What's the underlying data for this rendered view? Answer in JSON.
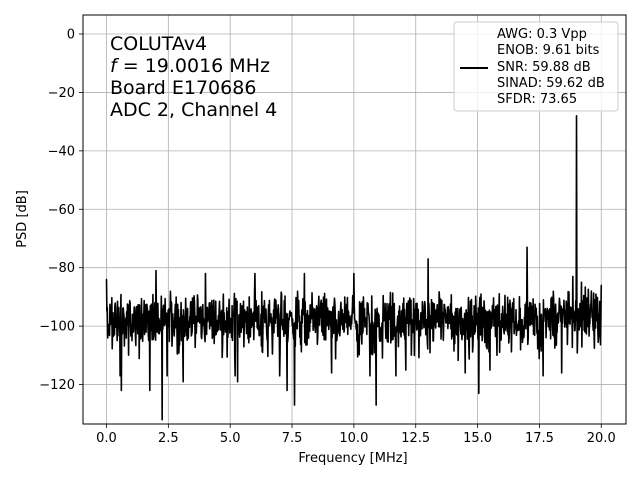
{
  "chart_data": {
    "type": "line",
    "xlabel": "Frequency [MHz]",
    "ylabel": "PSD [dB]",
    "xlim": [
      -0.95,
      21.0
    ],
    "ylim": [
      -133.5,
      6.5
    ],
    "xticks": [
      0.0,
      2.5,
      5.0,
      7.5,
      10.0,
      12.5,
      15.0,
      17.5,
      20.0
    ],
    "xtick_labels": [
      "0.0",
      "2.5",
      "5.0",
      "7.5",
      "10.0",
      "12.5",
      "15.0",
      "17.5",
      "20.0"
    ],
    "yticks": [
      0,
      -20,
      -40,
      -60,
      -80,
      -100,
      -120
    ],
    "ytick_labels": [
      "0",
      "−20",
      "−40",
      "−60",
      "−80",
      "−100",
      "−120"
    ],
    "grid": true,
    "annotation": {
      "line1": "COLUTAv4",
      "line2_italic": "f",
      "line2_rest": " = 19.0016 MHz",
      "line3": "Board E170686",
      "line4": "ADC 2, Channel 4"
    },
    "legend": {
      "placement": "top-right",
      "lines": [
        "AWG: 0.3 Vpp",
        "ENOB: 9.61 bits",
        "SNR: 59.88 dB",
        "SINAD: 59.62 dB",
        "SFDR: 73.65"
      ]
    },
    "series": [
      {
        "color": "#000000",
        "noise_floor": {
          "x_range": [
            0.0,
            20.0
          ],
          "mean": -98,
          "spread": [
            -110,
            -88
          ]
        },
        "peaks": [
          {
            "x": 0.0,
            "y": -84
          },
          {
            "x": 0.05,
            "y": -104
          },
          {
            "x": 0.55,
            "y": -117
          },
          {
            "x": 0.6,
            "y": -122
          },
          {
            "x": 1.75,
            "y": -122
          },
          {
            "x": 2.0,
            "y": -81
          },
          {
            "x": 2.25,
            "y": -132
          },
          {
            "x": 2.45,
            "y": -117
          },
          {
            "x": 3.1,
            "y": -119
          },
          {
            "x": 4.0,
            "y": -82
          },
          {
            "x": 5.2,
            "y": -117
          },
          {
            "x": 5.3,
            "y": -119
          },
          {
            "x": 6.0,
            "y": -82
          },
          {
            "x": 7.0,
            "y": -117
          },
          {
            "x": 7.3,
            "y": -122
          },
          {
            "x": 7.6,
            "y": -127
          },
          {
            "x": 8.0,
            "y": -82
          },
          {
            "x": 9.1,
            "y": -116
          },
          {
            "x": 10.0,
            "y": -82
          },
          {
            "x": 10.65,
            "y": -117
          },
          {
            "x": 10.9,
            "y": -127
          },
          {
            "x": 11.7,
            "y": -117
          },
          {
            "x": 12.1,
            "y": -115
          },
          {
            "x": 13.0,
            "y": -77
          },
          {
            "x": 14.5,
            "y": -116
          },
          {
            "x": 15.05,
            "y": -123
          },
          {
            "x": 15.5,
            "y": -115
          },
          {
            "x": 17.0,
            "y": -73
          },
          {
            "x": 17.65,
            "y": -117
          },
          {
            "x": 18.4,
            "y": -116
          },
          {
            "x": 18.85,
            "y": -83
          },
          {
            "x": 19.0,
            "y": -28
          },
          {
            "x": 19.2,
            "y": -85
          },
          {
            "x": 19.6,
            "y": -88
          },
          {
            "x": 20.0,
            "y": -86
          },
          {
            "x": 19.9,
            "y": -103
          }
        ]
      }
    ]
  }
}
